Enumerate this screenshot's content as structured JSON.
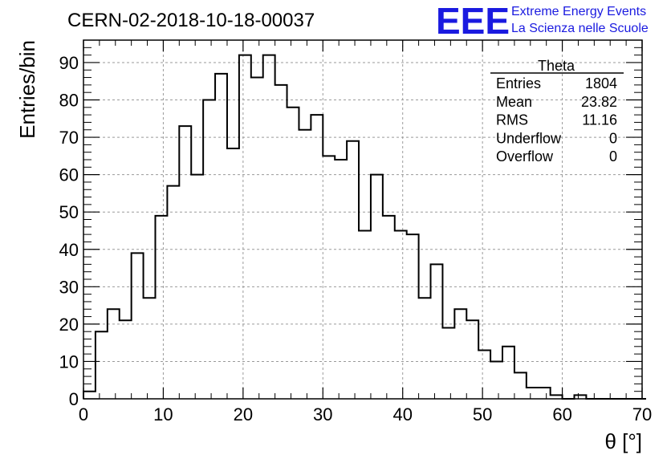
{
  "title": "CERN-02-2018-10-18-00037",
  "logo": {
    "mark": "EEE",
    "line1": "Extreme Energy Events",
    "line2": "La Scienza nelle Scuole",
    "color": "#1a1ae0"
  },
  "stats": {
    "name": "Theta",
    "rows": [
      {
        "label": "Entries",
        "value": "1804"
      },
      {
        "label": "Mean",
        "value": "23.82"
      },
      {
        "label": "RMS",
        "value": "11.16"
      },
      {
        "label": "Underflow",
        "value": "0"
      },
      {
        "label": "Overflow",
        "value": "0"
      }
    ]
  },
  "chart_data": {
    "type": "bar",
    "style": "step-histogram",
    "xlabel": "θ [°]",
    "ylabel": "Entries/bin",
    "xlim": [
      0,
      70
    ],
    "ylim": [
      0,
      96
    ],
    "xticks": [
      0,
      10,
      20,
      30,
      40,
      50,
      60,
      70
    ],
    "yticks": [
      0,
      10,
      20,
      30,
      40,
      50,
      60,
      70,
      80,
      90
    ],
    "grid": true,
    "bin_width": 1.5,
    "bin_start": 0,
    "values": [
      2,
      18,
      24,
      21,
      39,
      27,
      49,
      57,
      73,
      60,
      80,
      87,
      67,
      92,
      86,
      92,
      84,
      78,
      72,
      76,
      65,
      64,
      69,
      45,
      60,
      49,
      45,
      44,
      27,
      36,
      19,
      24,
      21,
      13,
      10,
      14,
      7,
      3,
      3,
      1,
      0,
      1,
      0,
      0,
      0,
      0,
      0
    ]
  }
}
